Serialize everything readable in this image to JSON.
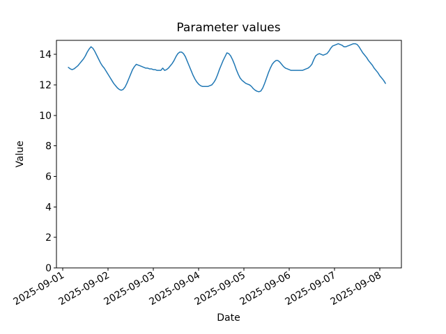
{
  "chart_data": {
    "type": "line",
    "title": "Parameter values",
    "xlabel": "Date",
    "ylabel": "Value",
    "legend": "none",
    "grid": false,
    "line_color": "#1f77b4",
    "line_width": 1.5,
    "axis_color": "#000000",
    "background_color": "#ffffff",
    "x_tick_labels": [
      "2025-09-01",
      "2025-09-02",
      "2025-09-03",
      "2025-09-04",
      "2025-09-05",
      "2025-09-06",
      "2025-09-07",
      "2025-09-08"
    ],
    "x_tick_positions_days": [
      0,
      1,
      2,
      3,
      4,
      5,
      6,
      7
    ],
    "x_tick_rotation_deg": 30,
    "y_ticks": [
      0,
      2,
      4,
      6,
      8,
      10,
      12,
      14
    ],
    "xlim_days": [
      -0.138,
      7.477
    ],
    "ylim": [
      0,
      14.92
    ],
    "x_start_label": "2025-09-01 03:00",
    "x_start_day_offset": 0.125,
    "x_step_hours": 1,
    "values": [
      13.15,
      13.05,
      13.0,
      13.05,
      13.15,
      13.25,
      13.4,
      13.55,
      13.7,
      13.9,
      14.15,
      14.35,
      14.5,
      14.4,
      14.2,
      13.95,
      13.7,
      13.45,
      13.25,
      13.1,
      12.9,
      12.7,
      12.5,
      12.3,
      12.1,
      11.95,
      11.8,
      11.7,
      11.65,
      11.7,
      11.85,
      12.1,
      12.4,
      12.7,
      13.0,
      13.2,
      13.35,
      13.3,
      13.25,
      13.2,
      13.15,
      13.1,
      13.1,
      13.05,
      13.05,
      13.0,
      13.0,
      12.95,
      12.95,
      12.95,
      13.1,
      12.95,
      13.0,
      13.1,
      13.25,
      13.4,
      13.6,
      13.85,
      14.05,
      14.15,
      14.15,
      14.05,
      13.85,
      13.55,
      13.25,
      12.95,
      12.65,
      12.4,
      12.2,
      12.05,
      11.95,
      11.9,
      11.9,
      11.9,
      11.9,
      11.95,
      12.0,
      12.15,
      12.35,
      12.65,
      13.0,
      13.3,
      13.6,
      13.85,
      14.1,
      14.05,
      13.9,
      13.65,
      13.35,
      13.0,
      12.7,
      12.45,
      12.3,
      12.2,
      12.1,
      12.05,
      12.0,
      11.9,
      11.75,
      11.65,
      11.58,
      11.55,
      11.6,
      11.8,
      12.1,
      12.45,
      12.8,
      13.1,
      13.35,
      13.5,
      13.6,
      13.6,
      13.5,
      13.35,
      13.2,
      13.1,
      13.05,
      13.0,
      12.95,
      12.95,
      12.95,
      12.95,
      12.95,
      12.95,
      12.95,
      13.0,
      13.05,
      13.1,
      13.2,
      13.35,
      13.65,
      13.9,
      14.0,
      14.05,
      14.0,
      13.95,
      14.0,
      14.05,
      14.2,
      14.4,
      14.55,
      14.6,
      14.65,
      14.7,
      14.65,
      14.6,
      14.5,
      14.5,
      14.55,
      14.6,
      14.65,
      14.7,
      14.7,
      14.65,
      14.5,
      14.3,
      14.1,
      13.95,
      13.8,
      13.6,
      13.45,
      13.3,
      13.1,
      12.95,
      12.8,
      12.6,
      12.45,
      12.3,
      12.1
    ]
  }
}
